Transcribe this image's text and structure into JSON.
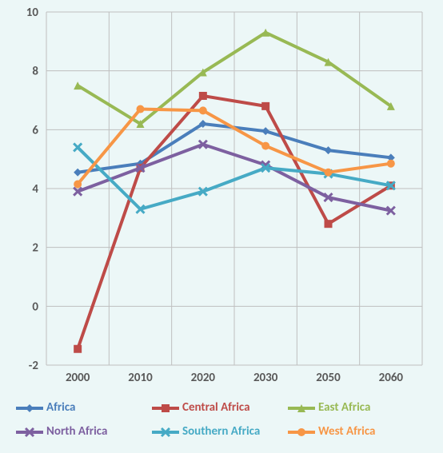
{
  "chart": {
    "type": "line",
    "background_color": "#ecf7f7",
    "grid_color": "#bfbfbf",
    "axis_font_color": "#595959",
    "axis_font_size": 15,
    "x_categories": [
      "2000",
      "2010",
      "2020",
      "2030",
      "2050",
      "2060"
    ],
    "ylim": [
      -2,
      10
    ],
    "ytick_step": 2,
    "line_width": 4,
    "marker_size": 10,
    "series": [
      {
        "name": "Africa",
        "color": "#4a7ebb",
        "marker": "diamond",
        "values": [
          4.55,
          4.85,
          6.2,
          5.95,
          5.3,
          5.05
        ]
      },
      {
        "name": "Central Africa",
        "color": "#be4b48",
        "marker": "square",
        "values": [
          -1.45,
          4.7,
          7.15,
          6.8,
          2.8,
          4.1
        ]
      },
      {
        "name": "East Africa",
        "color": "#98b954",
        "marker": "triangle",
        "values": [
          7.5,
          6.2,
          7.95,
          9.3,
          8.3,
          6.8
        ]
      },
      {
        "name": "North Africa",
        "color": "#7d60a0",
        "marker": "x",
        "values": [
          3.9,
          4.7,
          5.5,
          4.8,
          3.7,
          3.25
        ]
      },
      {
        "name": "Southern Africa",
        "color": "#46aac5",
        "marker": "x",
        "values": [
          5.4,
          3.3,
          3.9,
          4.7,
          4.5,
          4.1
        ]
      },
      {
        "name": "West Africa",
        "color": "#f79646",
        "marker": "circle",
        "values": [
          4.15,
          6.7,
          6.65,
          5.45,
          4.55,
          4.85
        ]
      }
    ]
  }
}
